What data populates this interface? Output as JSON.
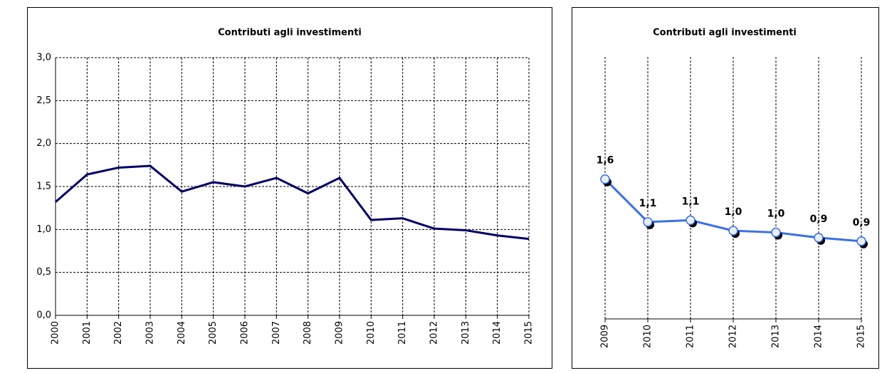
{
  "chart_data": [
    {
      "type": "line",
      "title": "Contributi agli investimenti",
      "categories": [
        "2000",
        "2001",
        "2002",
        "2003",
        "2004",
        "2005",
        "2006",
        "2007",
        "2008",
        "2009",
        "2010",
        "2011",
        "2012",
        "2013",
        "2014",
        "2015"
      ],
      "values": [
        1.32,
        1.64,
        1.72,
        1.74,
        1.44,
        1.55,
        1.5,
        1.6,
        1.42,
        1.6,
        1.11,
        1.13,
        1.01,
        0.99,
        0.93,
        0.89
      ],
      "color": "#000066",
      "ylim": [
        0,
        3
      ],
      "yticks": [
        {
          "value": 0,
          "label": "0,0"
        },
        {
          "value": 0.5,
          "label": "0,5"
        },
        {
          "value": 1,
          "label": "1,0"
        },
        {
          "value": 1.5,
          "label": "1,5"
        },
        {
          "value": 2,
          "label": "2,0"
        },
        {
          "value": 2.5,
          "label": "2,5"
        },
        {
          "value": 3,
          "label": "3,0"
        }
      ],
      "grid": "both",
      "markers": false
    },
    {
      "type": "line",
      "title": "Contributi agli investimenti",
      "categories": [
        "2009",
        "2010",
        "2011",
        "2012",
        "2013",
        "2014",
        "2015"
      ],
      "values": [
        1.6,
        1.11,
        1.13,
        1.01,
        0.99,
        0.93,
        0.89
      ],
      "value_labels": [
        "1,6",
        "1,1",
        "1,1",
        "1,0",
        "1,0",
        "0,9",
        "0,9"
      ],
      "color": "#3a6fe6",
      "ylim": [
        0,
        3
      ],
      "grid": "x",
      "markers": true
    }
  ]
}
